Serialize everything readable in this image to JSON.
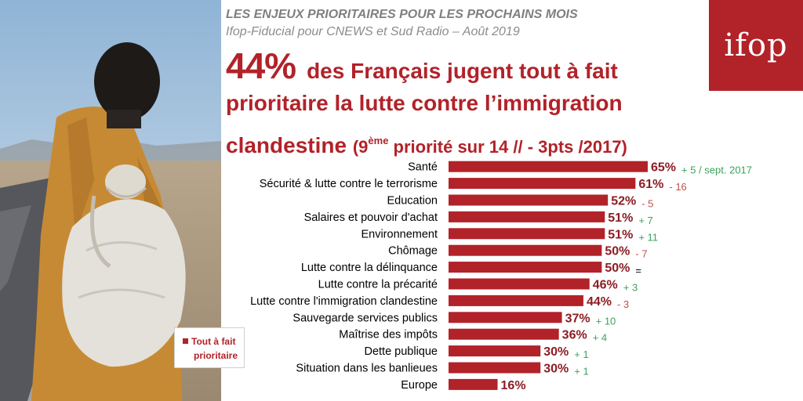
{
  "header": {
    "line1": "LES ENJEUX PRIORITAIRES POUR LES PROCHAINS MOIS",
    "line2": "Ifop-Fiducial pour CNEWS et Sud Radio – Août 2019"
  },
  "logo": {
    "text": "ifop"
  },
  "headline": {
    "big_value": "44%",
    "line1_rest": "des Français jugent tout à fait",
    "line2": "prioritaire la lutte contre l’immigration",
    "line3_main": "clandestine",
    "line3_paren_open": "(9",
    "line3_sup": "ème",
    "line3_paren_rest": " priorité sur 14 // - 3pts /2017)"
  },
  "legend": {
    "line1": "Tout à fait",
    "line2": "prioritaire"
  },
  "colors": {
    "bar": "#b22229",
    "change_green": "#3aa35c",
    "change_red": "#c0504d",
    "text": "#000000"
  },
  "chart_data": {
    "type": "bar",
    "orientation": "horizontal",
    "series": [
      {
        "name": "Tout à fait prioritaire"
      }
    ],
    "categories": [
      "Santé",
      "Sécurité & lutte contre le terrorisme",
      "Education",
      "Salaires et pouvoir d'achat",
      "Environnement",
      "Chômage",
      "Lutte contre la délinquance",
      "Lutte contre la précarité",
      "Lutte contre l'immigration clandestine",
      "Sauvegarde services publics",
      "Maîtrise des impôts",
      "Dette publique",
      "Situation dans les banlieues",
      "Europe"
    ],
    "values": [
      65,
      61,
      52,
      51,
      51,
      50,
      50,
      46,
      44,
      37,
      36,
      30,
      30,
      16
    ],
    "value_labels": [
      "65%",
      "61%",
      "52%",
      "51%",
      "51%",
      "50%",
      "50%",
      "46%",
      "44%",
      "37%",
      "36%",
      "30%",
      "30%",
      "16%"
    ],
    "changes": [
      "+ 5 / sept. 2017",
      "- 16",
      "- 5",
      "+ 7",
      "+ 11",
      "- 7",
      "=",
      "+ 3",
      "- 3",
      "+ 10",
      "+ 4",
      "+ 1",
      "+ 1",
      ""
    ],
    "change_direction": [
      "up",
      "down",
      "down",
      "up",
      "up",
      "down",
      "neutral",
      "up",
      "down",
      "up",
      "up",
      "up",
      "up",
      "none"
    ],
    "xlim": [
      0,
      100
    ],
    "grid": false,
    "legend_position": "bottom-left"
  }
}
